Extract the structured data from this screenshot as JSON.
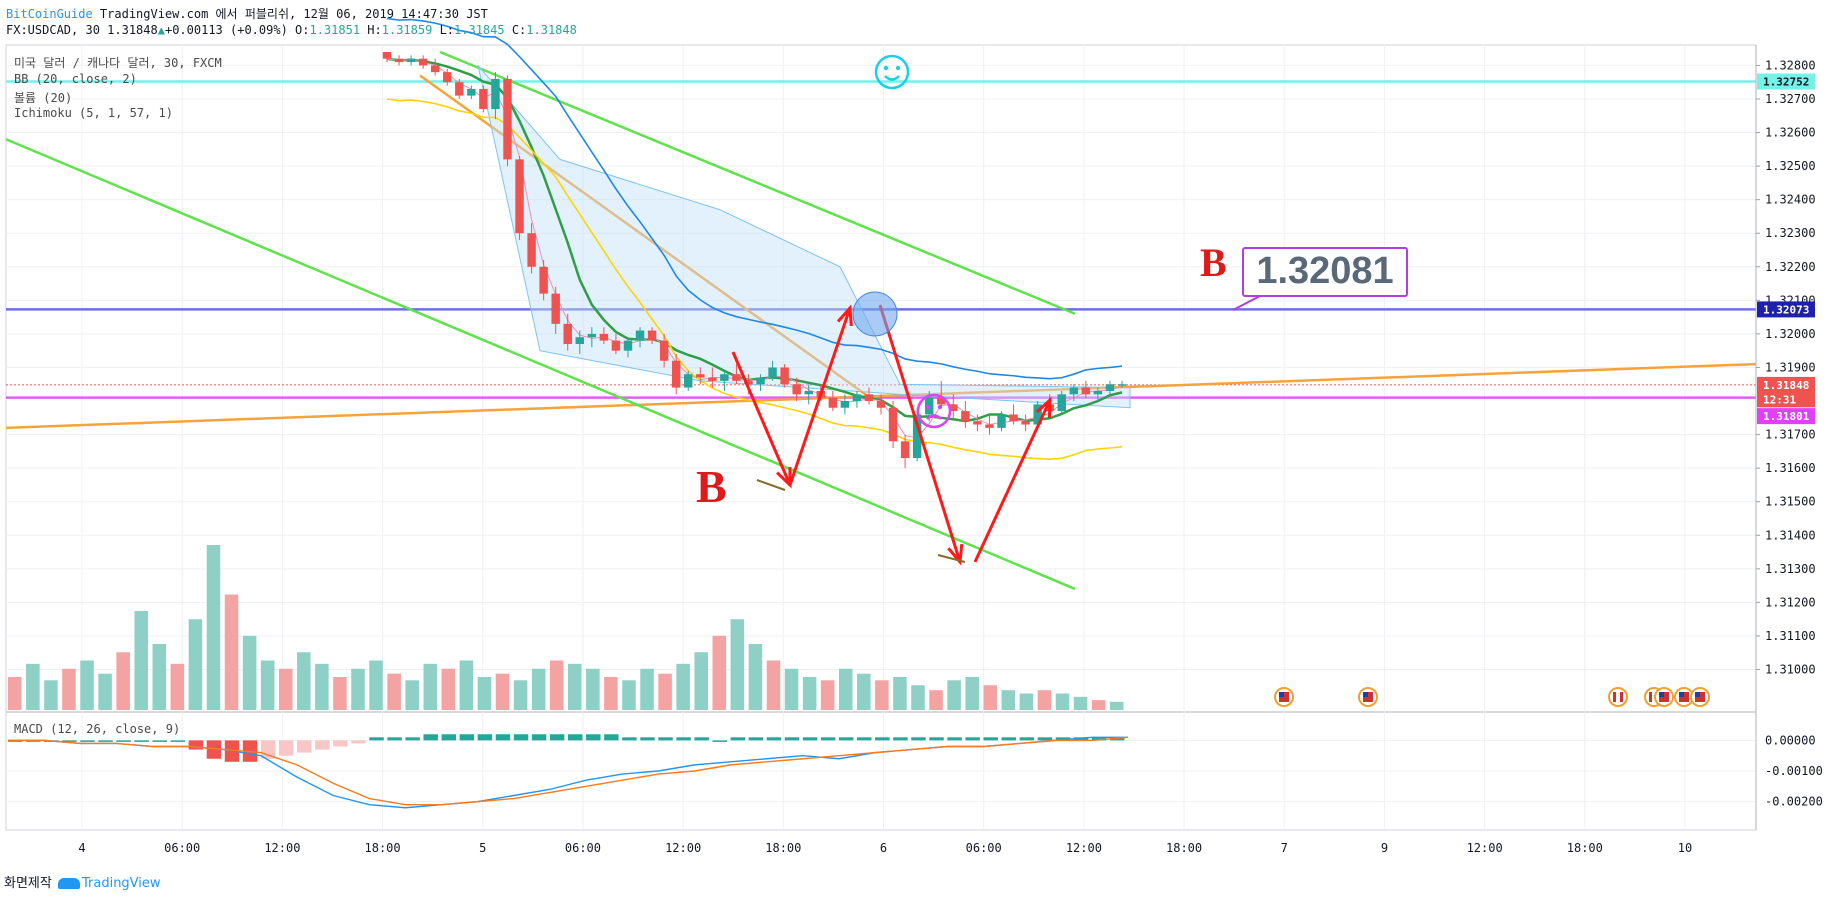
{
  "header": {
    "line1_brand": "BitCoinGuide",
    "line1_text": " TradingView.com 에서 퍼블리쉬, 12월 06, 2019 14:47:30 JST",
    "symbol": "FX:USDCAD, 30",
    "last": "1.31848",
    "change": "+0.00113 (+0.09%)",
    "o_label": "O:",
    "o_val": "1.31851",
    "h_label": "H:",
    "h_val": "1.31859",
    "l_label": "L:",
    "l_val": "1.31845",
    "c_label": "C:",
    "c_val": "1.31848"
  },
  "legend": {
    "title": "미국 달러 / 캐나다 달러, 30, FXCM",
    "bb": "BB (20, close, 2)",
    "volume": "볼륨 (20)",
    "ichimoku": "Ichimoku (5, 1, 57, 1)",
    "macd": "MACD (12, 26, close, 9)"
  },
  "footer": {
    "made_with": "화면제작",
    "tv": "TradingView"
  },
  "annotations": {
    "callout_value": "1.32081",
    "b_letter_1": "B",
    "b_letter_2": "B"
  },
  "colors": {
    "up": "#26a69a",
    "down": "#ef5350",
    "vol_up": "#8fd0c6",
    "vol_down": "#f4a3a3",
    "trend_green": "#5ee34a",
    "orange": "#f7a33a",
    "cyan": "#74f2e8",
    "blue_line": "#6f6fe0",
    "magenta": "#e040fb",
    "red_arrow": "#ff1a1a"
  },
  "chart_data": {
    "type": "candlestick",
    "symbol": "FX:USDCAD",
    "timeframe": "30",
    "x_ticks": [
      "4",
      "06:00",
      "12:00",
      "18:00",
      "5",
      "06:00",
      "12:00",
      "18:00",
      "6",
      "06:00",
      "12:00",
      "18:00",
      "7",
      "9",
      "12:00",
      "18:00",
      "10"
    ],
    "y_ticks": [
      "1.32800",
      "1.32700",
      "1.32600",
      "1.32500",
      "1.32400",
      "1.32300",
      "1.32200",
      "1.32100",
      "1.32000",
      "1.31900",
      "1.31700",
      "1.31600",
      "1.31500",
      "1.31400",
      "1.31300",
      "1.31200",
      "1.31100",
      "1.31000"
    ],
    "ylim": [
      1.3093,
      1.3284
    ],
    "macd_ticks": [
      "0.00000",
      "-0.00100",
      "-0.00200"
    ],
    "macd_ylim": [
      -0.0026,
      0.0006
    ],
    "price_labels": [
      {
        "value": "1.32752",
        "price": 1.32752,
        "bg": "#74f2e8",
        "fg": "#131722"
      },
      {
        "value": "1.32073",
        "price": 1.32073,
        "bg": "#1e22aa",
        "fg": "#ffffff"
      },
      {
        "value": "1.31848",
        "price": 1.31848,
        "bg": "#ef5350",
        "fg": "#ffffff"
      },
      {
        "value": "12:31",
        "price": 1.31805,
        "bg": "#ef5350",
        "fg": "#ffffff"
      },
      {
        "value": "1.31801",
        "price": 1.31755,
        "bg": "#e040fb",
        "fg": "#ffffff"
      }
    ],
    "candles": [
      [
        1.3284,
        1.3284,
        1.3281,
        1.3282
      ],
      [
        1.3282,
        1.3283,
        1.328,
        1.3281
      ],
      [
        1.3281,
        1.3283,
        1.328,
        1.3282
      ],
      [
        1.3282,
        1.3283,
        1.3279,
        1.328
      ],
      [
        1.328,
        1.3282,
        1.3277,
        1.3278
      ],
      [
        1.3278,
        1.3279,
        1.3274,
        1.3275
      ],
      [
        1.3275,
        1.3276,
        1.327,
        1.3271
      ],
      [
        1.3271,
        1.3274,
        1.327,
        1.3273
      ],
      [
        1.3273,
        1.3274,
        1.3266,
        1.3267
      ],
      [
        1.3267,
        1.3278,
        1.3264,
        1.3276
      ],
      [
        1.3276,
        1.3277,
        1.325,
        1.3252
      ],
      [
        1.3252,
        1.3253,
        1.3228,
        1.323
      ],
      [
        1.323,
        1.3233,
        1.3218,
        1.322
      ],
      [
        1.322,
        1.3222,
        1.321,
        1.3212
      ],
      [
        1.3212,
        1.3214,
        1.32,
        1.3203
      ],
      [
        1.3203,
        1.3206,
        1.3195,
        1.3197
      ],
      [
        1.3197,
        1.3201,
        1.3194,
        1.3199
      ],
      [
        1.3199,
        1.3202,
        1.3196,
        1.32
      ],
      [
        1.32,
        1.3202,
        1.3197,
        1.3198
      ],
      [
        1.3198,
        1.32,
        1.3194,
        1.3195
      ],
      [
        1.3195,
        1.3199,
        1.3193,
        1.3198
      ],
      [
        1.3198,
        1.3202,
        1.3196,
        1.3201
      ],
      [
        1.3201,
        1.3202,
        1.3197,
        1.3198
      ],
      [
        1.3198,
        1.32,
        1.319,
        1.3192
      ],
      [
        1.3192,
        1.3194,
        1.3182,
        1.3184
      ],
      [
        1.3184,
        1.3189,
        1.3183,
        1.3188
      ],
      [
        1.3188,
        1.319,
        1.3185,
        1.3187
      ],
      [
        1.3187,
        1.319,
        1.3184,
        1.3186
      ],
      [
        1.3186,
        1.3189,
        1.3183,
        1.3188
      ],
      [
        1.3188,
        1.3191,
        1.3185,
        1.3186
      ],
      [
        1.3186,
        1.3188,
        1.3182,
        1.3185
      ],
      [
        1.3185,
        1.3188,
        1.3183,
        1.3187
      ],
      [
        1.3187,
        1.3192,
        1.3186,
        1.319
      ],
      [
        1.319,
        1.3191,
        1.3184,
        1.3185
      ],
      [
        1.3185,
        1.3187,
        1.318,
        1.3182
      ],
      [
        1.3182,
        1.3185,
        1.3179,
        1.3183
      ],
      [
        1.3183,
        1.3185,
        1.318,
        1.3181
      ],
      [
        1.3181,
        1.3183,
        1.3177,
        1.3178
      ],
      [
        1.3178,
        1.3182,
        1.3176,
        1.318
      ],
      [
        1.318,
        1.3183,
        1.3178,
        1.3182
      ],
      [
        1.3182,
        1.3184,
        1.3179,
        1.318
      ],
      [
        1.318,
        1.3182,
        1.3176,
        1.3178
      ],
      [
        1.3178,
        1.318,
        1.3166,
        1.3168
      ],
      [
        1.3168,
        1.317,
        1.316,
        1.3163
      ],
      [
        1.3163,
        1.3178,
        1.3162,
        1.3176
      ],
      [
        1.3176,
        1.3183,
        1.3174,
        1.3181
      ],
      [
        1.3181,
        1.3186,
        1.3178,
        1.3179
      ],
      [
        1.3179,
        1.3182,
        1.3175,
        1.3177
      ],
      [
        1.3177,
        1.318,
        1.3172,
        1.3174
      ],
      [
        1.3174,
        1.3176,
        1.3171,
        1.3173
      ],
      [
        1.3173,
        1.3176,
        1.317,
        1.3172
      ],
      [
        1.3172,
        1.3177,
        1.3171,
        1.3176
      ],
      [
        1.3176,
        1.3179,
        1.3173,
        1.3174
      ],
      [
        1.3174,
        1.3176,
        1.3171,
        1.3173
      ],
      [
        1.3173,
        1.318,
        1.3172,
        1.3179
      ],
      [
        1.3179,
        1.3182,
        1.3176,
        1.3177
      ],
      [
        1.3177,
        1.3183,
        1.3176,
        1.3182
      ],
      [
        1.3182,
        1.3185,
        1.318,
        1.3184
      ],
      [
        1.3184,
        1.3186,
        1.3181,
        1.3182
      ],
      [
        1.3182,
        1.3184,
        1.318,
        1.3183
      ],
      [
        1.3183,
        1.3186,
        1.3182,
        1.3185
      ],
      [
        1.3185,
        1.3186,
        1.3184,
        1.3185
      ]
    ],
    "volume_max": 100,
    "volume": [
      20,
      28,
      18,
      25,
      30,
      22,
      35,
      60,
      40,
      28,
      55,
      100,
      70,
      45,
      30,
      25,
      35,
      28,
      20,
      25,
      30,
      22,
      18,
      28,
      25,
      30,
      20,
      22,
      18,
      25,
      30,
      28,
      25,
      20,
      18,
      25,
      22,
      28,
      35,
      45,
      55,
      40,
      30,
      25,
      20,
      18,
      25,
      22,
      18,
      20,
      15,
      12,
      18,
      20,
      15,
      12,
      10,
      12,
      10,
      8,
      6,
      5
    ],
    "macd_hist": [
      0.0,
      0.0,
      0.0,
      0.0,
      0.0,
      0.0,
      0.0,
      0.0,
      0.0,
      0.0,
      -0.0003,
      -0.0006,
      -0.0007,
      -0.0007,
      -0.0006,
      -0.0005,
      -0.0004,
      -0.0003,
      -0.0002,
      -0.0001,
      0.0001,
      0.0001,
      0.0001,
      0.0002,
      0.0002,
      0.0002,
      0.0002,
      0.0002,
      0.0002,
      0.0002,
      0.0002,
      0.0002,
      0.0002,
      0.0002,
      0.0001,
      0.0001,
      0.0001,
      0.0001,
      0.0001,
      0.0,
      0.0001,
      0.0001,
      0.0001,
      0.0001,
      0.0001,
      0.0001,
      0.0001,
      0.0001,
      0.0001,
      0.0001,
      0.0001,
      0.0001,
      0.0001,
      0.0001,
      0.0001,
      0.0001,
      0.0001,
      0.0001,
      0.0001,
      0.0001,
      0.0001,
      0.0001
    ],
    "macd_line": [
      0.0,
      0.0,
      -0.0001,
      -0.0001,
      -0.0002,
      -0.0002,
      -0.0003,
      -0.0005,
      -0.0012,
      -0.0018,
      -0.0021,
      -0.0022,
      -0.0021,
      -0.002,
      -0.0018,
      -0.0016,
      -0.0013,
      -0.0011,
      -0.001,
      -0.0008,
      -0.0007,
      -0.0006,
      -0.0005,
      -0.0006,
      -0.0004,
      -0.0003,
      -0.0002,
      -0.0002,
      -0.0001,
      0.0,
      0.0001,
      0.0001
    ],
    "signal_line": [
      0.0,
      0.0,
      -0.0001,
      -0.0001,
      -0.0002,
      -0.0002,
      -0.0003,
      -0.0004,
      -0.0008,
      -0.0014,
      -0.0019,
      -0.0021,
      -0.0021,
      -0.002,
      -0.0019,
      -0.0017,
      -0.0015,
      -0.0013,
      -0.0011,
      -0.001,
      -0.0008,
      -0.0007,
      -0.0006,
      -0.0005,
      -0.0004,
      -0.0003,
      -0.0002,
      -0.0002,
      -0.0001,
      0.0,
      0.0,
      0.0001
    ]
  }
}
